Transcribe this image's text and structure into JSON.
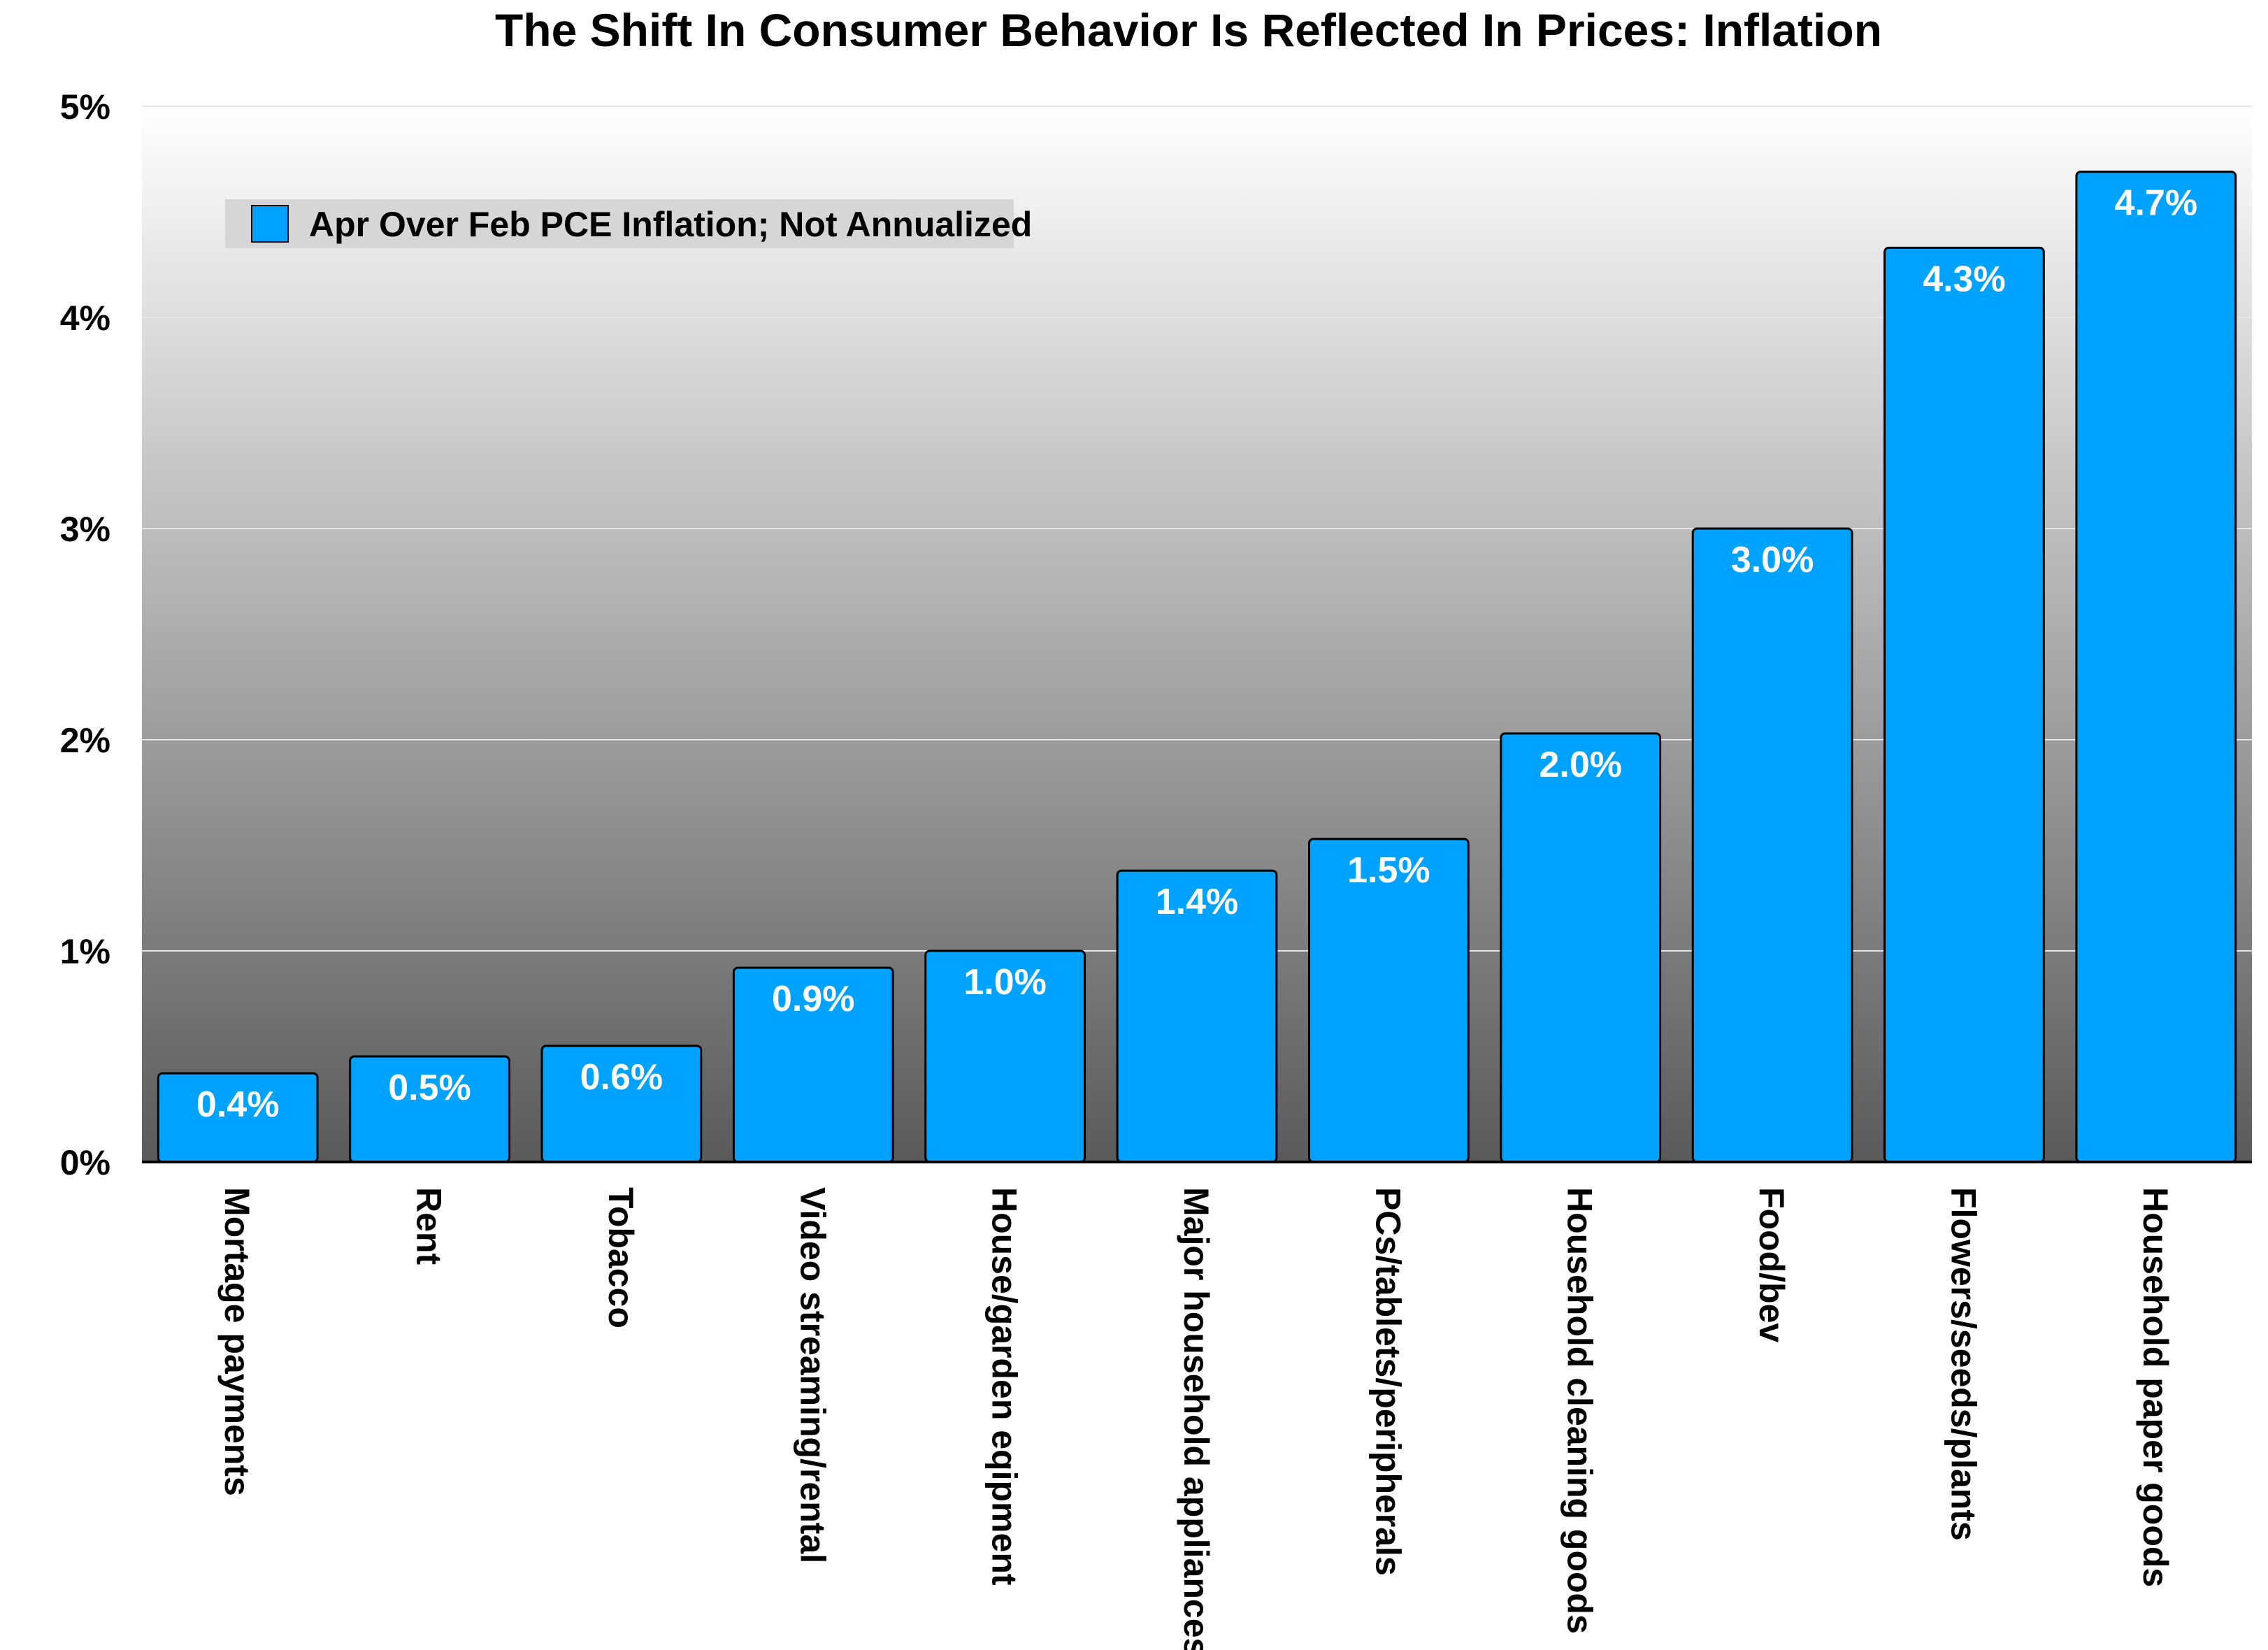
{
  "chart_data": {
    "type": "bar",
    "title": "The Shift In Consumer Behavior Is Reflected In Prices: Inflation",
    "categories": [
      "Mortage payments",
      "Rent",
      "Tobacco",
      "Video streaming/rental",
      "House/garden eqipment",
      "Major household appliances",
      "PCs/tablets/peripherals",
      "Household cleaning goods",
      "Food/bev",
      "Flowers/seeds/plants",
      "Household paper goods"
    ],
    "series": [
      {
        "name": "Apr Over Feb PCE Inflation; Not Annualized",
        "values": [
          0.42,
          0.5,
          0.55,
          0.92,
          1.0,
          1.38,
          1.53,
          2.03,
          3.0,
          4.33,
          4.69
        ],
        "labels": [
          "0.4%",
          "0.5%",
          "0.6%",
          "0.9%",
          "1.0%",
          "1.4%",
          "1.5%",
          "2.0%",
          "3.0%",
          "4.3%",
          "4.7%"
        ],
        "color": "#00a2ff"
      }
    ],
    "ylim": [
      0,
      5
    ],
    "yticks": [
      0,
      1,
      2,
      3,
      4,
      5
    ],
    "ytick_labels": [
      "0%",
      "1%",
      "2%",
      "3%",
      "4%",
      "5%"
    ],
    "xlabel": "",
    "ylabel": "",
    "grid": true,
    "legend_position": "top-left",
    "colors": {
      "bar_fill": "#00a2ff",
      "bar_stroke": "#000000",
      "background_top": "#ffffff",
      "background_bottom": "#5a5a5a",
      "legend_box": "#d6d6d6",
      "gridline": "#e6e6e6"
    }
  }
}
